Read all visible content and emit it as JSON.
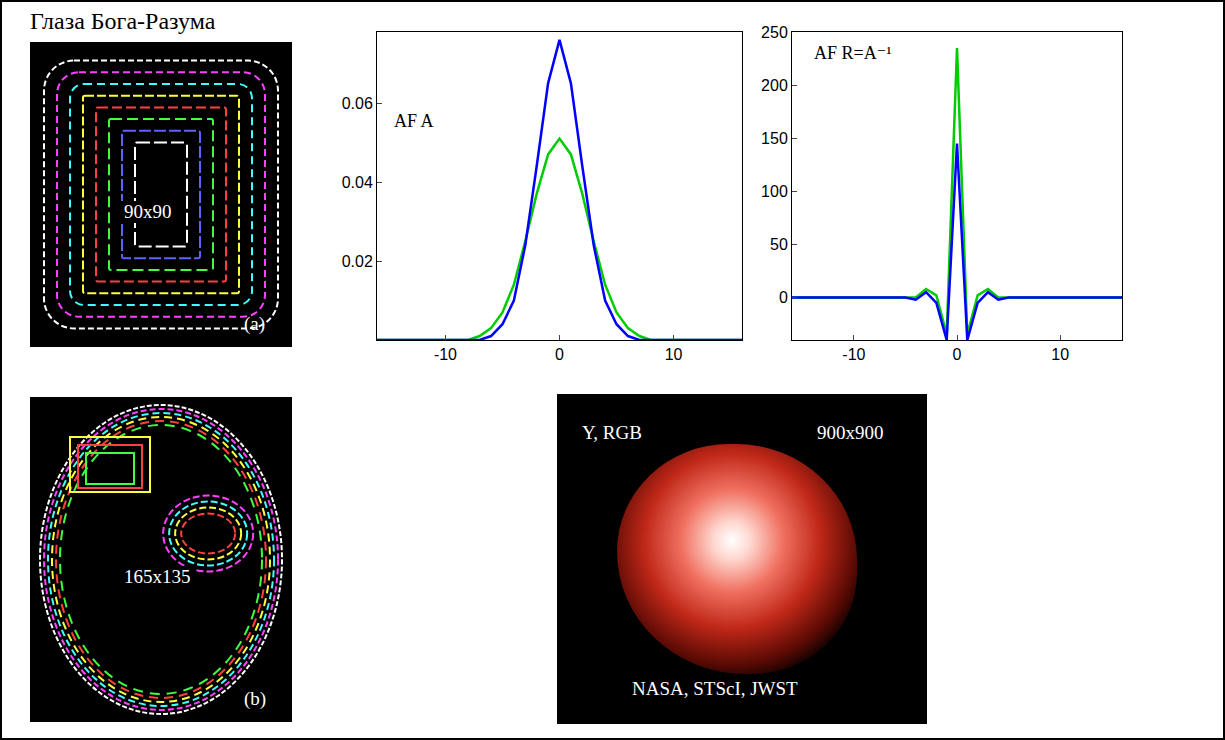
{
  "title": "Глаза Бога-Разума",
  "panels": [
    {
      "label": "(a)",
      "size": "90x90"
    },
    {
      "label": "(b)",
      "size": "165x135"
    }
  ],
  "image": {
    "channel": "Y, RGB",
    "size": "900x900",
    "credit": "NASA, STScI, JWST"
  },
  "chart_data": [
    {
      "type": "line",
      "title": "AF A",
      "x": [
        -16,
        -15,
        -14,
        -13,
        -12,
        -11,
        -10,
        -9,
        -8,
        -7,
        -6,
        -5,
        -4,
        -3,
        -2,
        -1,
        0,
        1,
        2,
        3,
        4,
        5,
        6,
        7,
        8,
        9,
        10,
        11,
        12,
        13,
        14,
        15,
        16
      ],
      "series": [
        {
          "color": "#00cc00",
          "values": [
            0,
            0,
            0,
            0,
            0,
            0,
            0,
            0,
            0,
            0.001,
            0.003,
            0.007,
            0.014,
            0.025,
            0.037,
            0.047,
            0.051,
            0.047,
            0.037,
            0.025,
            0.014,
            0.007,
            0.003,
            0.001,
            0,
            0,
            0,
            0,
            0,
            0,
            0,
            0,
            0
          ]
        },
        {
          "color": "#0000ff",
          "values": [
            0,
            0,
            0,
            0,
            0,
            0,
            0,
            0,
            0,
            0,
            0.001,
            0.004,
            0.01,
            0.024,
            0.044,
            0.065,
            0.076,
            0.065,
            0.044,
            0.024,
            0.01,
            0.004,
            0.001,
            0,
            0,
            0,
            0,
            0,
            0,
            0,
            0,
            0,
            0
          ]
        }
      ],
      "xlim": [
        -16,
        16
      ],
      "xticks": [
        -10,
        0,
        10
      ],
      "ylim": [
        0,
        0.078
      ],
      "yticks": [
        0.02,
        0.04,
        0.06
      ],
      "grid": false
    },
    {
      "type": "line",
      "title": "AF R=A⁻¹",
      "x": [
        -16,
        -15,
        -14,
        -13,
        -12,
        -11,
        -10,
        -9,
        -8,
        -7,
        -6,
        -5,
        -4,
        -3,
        -2,
        -1,
        0,
        1,
        2,
        3,
        4,
        5,
        6,
        7,
        8,
        9,
        10,
        11,
        12,
        13,
        14,
        15,
        16
      ],
      "series": [
        {
          "color": "#00cc00",
          "values": [
            0,
            0,
            0,
            0,
            0,
            0,
            0,
            0,
            0,
            0,
            0,
            0,
            0,
            8,
            2,
            -35,
            235,
            -35,
            2,
            8,
            0,
            0,
            0,
            0,
            0,
            0,
            0,
            0,
            0,
            0,
            0,
            0,
            0
          ]
        },
        {
          "color": "#0000ff",
          "values": [
            0,
            0,
            0,
            0,
            0,
            0,
            0,
            0,
            0,
            0,
            0,
            0,
            -2,
            5,
            -5,
            -40,
            145,
            -40,
            -5,
            5,
            -2,
            0,
            0,
            0,
            0,
            0,
            0,
            0,
            0,
            0,
            0,
            0,
            0
          ]
        }
      ],
      "xlim": [
        -16,
        16
      ],
      "xticks": [
        -10,
        0,
        10
      ],
      "ylim": [
        -40,
        250
      ],
      "yticks": [
        0,
        50,
        100,
        150,
        200,
        250
      ],
      "grid": false
    }
  ]
}
